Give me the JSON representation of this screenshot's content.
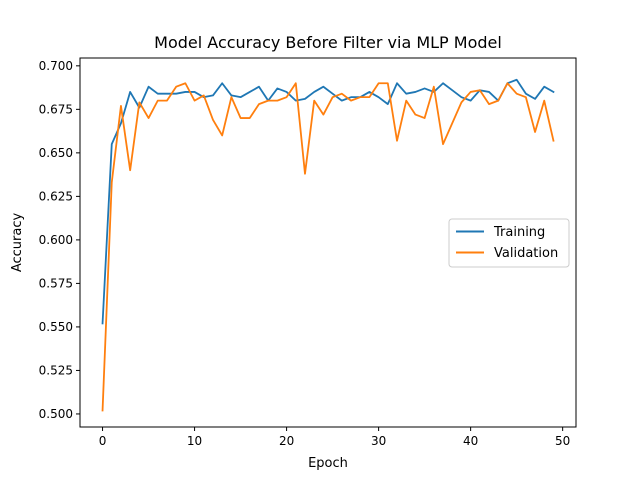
{
  "chart_data": {
    "type": "line",
    "title": "Model Accuracy Before Filter via MLP Model",
    "xlabel": "Epoch",
    "ylabel": "Accuracy",
    "xlim": [
      -2.45,
      51.45
    ],
    "ylim": [
      0.4925,
      0.7045
    ],
    "xticks": [
      0,
      10,
      20,
      30,
      40,
      50
    ],
    "xtick_labels": [
      "0",
      "10",
      "20",
      "30",
      "40",
      "50"
    ],
    "yticks": [
      0.5,
      0.525,
      0.55,
      0.575,
      0.6,
      0.625,
      0.65,
      0.675,
      0.7
    ],
    "ytick_labels": [
      "0.500",
      "0.525",
      "0.550",
      "0.575",
      "0.600",
      "0.625",
      "0.650",
      "0.675",
      "0.700"
    ],
    "grid": false,
    "legend_position": "center-right",
    "x": [
      0,
      1,
      2,
      3,
      4,
      5,
      6,
      7,
      8,
      9,
      10,
      11,
      12,
      13,
      14,
      15,
      16,
      17,
      18,
      19,
      20,
      21,
      22,
      23,
      24,
      25,
      26,
      27,
      28,
      29,
      30,
      31,
      32,
      33,
      34,
      35,
      36,
      37,
      38,
      39,
      40,
      41,
      42,
      43,
      44,
      45,
      46,
      47,
      48,
      49
    ],
    "series": [
      {
        "name": "Training",
        "color": "#1f77b4",
        "values": [
          0.552,
          0.655,
          0.667,
          0.685,
          0.676,
          0.688,
          0.684,
          0.684,
          0.684,
          0.685,
          0.685,
          0.682,
          0.683,
          0.69,
          0.683,
          0.682,
          0.685,
          0.688,
          0.68,
          0.687,
          0.685,
          0.68,
          0.681,
          0.685,
          0.688,
          0.684,
          0.68,
          0.682,
          0.682,
          0.685,
          0.682,
          0.678,
          0.69,
          0.684,
          0.685,
          0.687,
          0.685,
          0.69,
          0.686,
          0.682,
          0.68,
          0.686,
          0.685,
          0.68,
          0.69,
          0.692,
          0.684,
          0.681,
          0.688,
          0.685
        ]
      },
      {
        "name": "Validation",
        "color": "#ff7f0e",
        "values": [
          0.502,
          0.633,
          0.677,
          0.64,
          0.679,
          0.67,
          0.68,
          0.68,
          0.688,
          0.69,
          0.68,
          0.683,
          0.669,
          0.66,
          0.682,
          0.67,
          0.67,
          0.678,
          0.68,
          0.68,
          0.682,
          0.69,
          0.638,
          0.68,
          0.672,
          0.682,
          0.684,
          0.68,
          0.682,
          0.682,
          0.69,
          0.69,
          0.657,
          0.68,
          0.672,
          0.67,
          0.688,
          0.655,
          0.667,
          0.679,
          0.685,
          0.686,
          0.678,
          0.68,
          0.69,
          0.684,
          0.682,
          0.662,
          0.68,
          0.657
        ]
      }
    ]
  }
}
